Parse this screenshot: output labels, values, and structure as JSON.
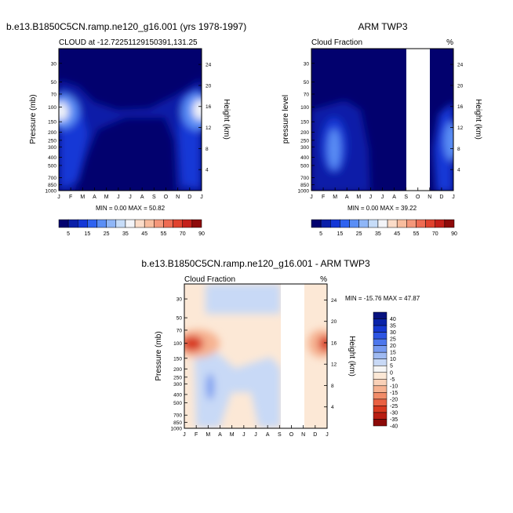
{
  "chart_data": [
    {
      "type": "heatmap",
      "title": "b.e13.B1850C5CN.ramp.ne120_g16.001 (yrs 1978-1997)",
      "subtitle_left": "CLOUD at -12.72251129150391,131.25",
      "subtitle_right": "",
      "ylabel": "Pressure (mb)",
      "y2label": "Height (km)",
      "xticks": [
        "J",
        "F",
        "M",
        "A",
        "M",
        "J",
        "J",
        "A",
        "S",
        "O",
        "N",
        "D",
        "J"
      ],
      "yticks": [
        "30",
        "50",
        "70",
        "100",
        "150",
        "200",
        "250",
        "300",
        "400",
        "500",
        "700",
        "850",
        "1000"
      ],
      "y2ticks": [
        "24",
        "20",
        "16",
        "12",
        "8",
        "4"
      ],
      "min_max": "MIN =   0.00 MAX =  50.82",
      "colorbar": {
        "orientation": "horizontal",
        "labels": [
          "5",
          "15",
          "25",
          "35",
          "45",
          "55",
          "70",
          "90"
        ]
      }
    },
    {
      "type": "heatmap",
      "title": "ARM TWP3",
      "subtitle_left": "Cloud Fraction",
      "subtitle_right": "%",
      "ylabel": "pressure level",
      "y2label": "Height (km)",
      "xticks": [
        "J",
        "F",
        "M",
        "A",
        "M",
        "J",
        "J",
        "A",
        "S",
        "O",
        "N",
        "D",
        "J"
      ],
      "yticks": [
        "30",
        "50",
        "70",
        "100",
        "150",
        "200",
        "250",
        "300",
        "400",
        "500",
        "700",
        "850",
        "1000"
      ],
      "y2ticks": [
        "24",
        "20",
        "16",
        "12",
        "8",
        "4"
      ],
      "min_max": "MIN =   0.00 MAX =  39.22",
      "missing_months": [
        "S",
        "O"
      ],
      "colorbar": {
        "orientation": "horizontal",
        "labels": [
          "5",
          "15",
          "25",
          "35",
          "45",
          "55",
          "70",
          "90"
        ]
      }
    },
    {
      "type": "heatmap",
      "title": "b.e13.B1850C5CN.ramp.ne120_g16.001 - ARM TWP3",
      "subtitle_left": "Cloud Fraction",
      "subtitle_right": "%",
      "ylabel": "Pressure (mb)",
      "y2label": "Height (km)",
      "xticks": [
        "J",
        "F",
        "M",
        "A",
        "M",
        "J",
        "J",
        "A",
        "S",
        "O",
        "N",
        "D",
        "J"
      ],
      "yticks": [
        "30",
        "50",
        "70",
        "100",
        "150",
        "200",
        "250",
        "300",
        "400",
        "500",
        "700",
        "850",
        "1000"
      ],
      "y2ticks": [
        "24",
        "20",
        "16",
        "12",
        "8",
        "4"
      ],
      "min_max": "MIN = -15.76 MAX =  47.87",
      "missing_months": [
        "S",
        "O"
      ],
      "colorbar": {
        "orientation": "vertical",
        "labels": [
          "40",
          "35",
          "30",
          "25",
          "20",
          "15",
          "10",
          "5",
          "0",
          "-5",
          "-10",
          "-15",
          "-20",
          "-25",
          "-30",
          "-35",
          "-40"
        ]
      }
    }
  ],
  "colors": {
    "abs_levels": [
      "#02016e",
      "#0a1fa8",
      "#1437d6",
      "#2f63f0",
      "#5a8ef5",
      "#8fb6f7",
      "#c6dcf8",
      "#f3f4f8",
      "#fbdcc8",
      "#f8bd9e",
      "#f4977a",
      "#ee6b52",
      "#e0422e",
      "#c4201a",
      "#8e0b0b"
    ],
    "diff_levels": [
      "#07127f",
      "#0a23a9",
      "#1638d0",
      "#2d55e3",
      "#4d77ec",
      "#769af0",
      "#9fbaf2",
      "#c8d9f6",
      "#f6f6f6",
      "#fce8d6",
      "#f9d1b8",
      "#f6b291",
      "#f18c69",
      "#ea6142",
      "#d8391f",
      "#b81d12",
      "#8c0a08"
    ],
    "base_dark": "#02016e",
    "diff_base": "#fce8d6"
  }
}
